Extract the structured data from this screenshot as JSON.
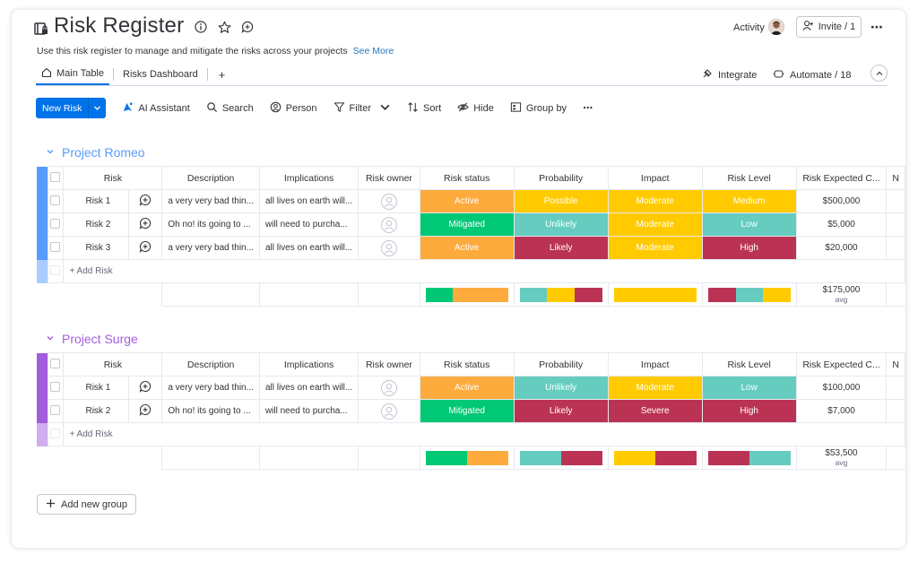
{
  "header": {
    "title": "Risk Register",
    "subtitle": "Use this risk register to manage and mitigate the risks across your projects",
    "see_more": "See More",
    "activity": "Activity",
    "invite": "Invite / 1",
    "more": "⋯"
  },
  "tabs": [
    {
      "label": "Main Table",
      "active": true
    },
    {
      "label": "Risks Dashboard",
      "active": false
    }
  ],
  "tab_add": "+",
  "integrate": "Integrate",
  "automate": "Automate / 18",
  "toolbar": {
    "new_risk": "New Risk",
    "ai_assistant": "AI Assistant",
    "search": "Search",
    "person": "Person",
    "filter": "Filter",
    "sort": "Sort",
    "hide": "Hide",
    "group_by": "Group by",
    "more": "⋯"
  },
  "columns": [
    "Risk",
    "Description",
    "Implications",
    "Risk owner",
    "Risk status",
    "Probability",
    "Impact",
    "Risk Level",
    "Risk Expected C...",
    "N"
  ],
  "colors": {
    "active": "#fdab3d",
    "mitigated": "#00c875",
    "possible": "#ffcb00",
    "unlikely": "#66ccc0",
    "likely": "#bb3354",
    "moderate": "#ffcb00",
    "severe": "#bb3354",
    "medium": "#ffcb00",
    "low": "#66ccc0",
    "high": "#bb3354",
    "romeo": "#579bfc",
    "surge": "#a25ddc"
  },
  "groups": [
    {
      "name": "Project Romeo",
      "color": "#579bfc",
      "rows": [
        {
          "risk": "Risk 1",
          "description": "a very very bad thin...",
          "implications": "all lives on earth will...",
          "status": "Active",
          "probability": "Possible",
          "impact": "Moderate",
          "level": "Medium",
          "cost": "$500,000"
        },
        {
          "risk": "Risk 2",
          "description": "Oh no! its going to ...",
          "implications": "will need to purcha...",
          "status": "Mitigated",
          "probability": "Unlikely",
          "impact": "Moderate",
          "level": "Low",
          "cost": "$5,000"
        },
        {
          "risk": "Risk 3",
          "description": "a very very bad thin...",
          "implications": "all lives on earth will...",
          "status": "Active",
          "probability": "Likely",
          "impact": "Moderate",
          "level": "High",
          "cost": "$20,000"
        }
      ],
      "add_label": "+ Add Risk",
      "summary_value": "$175,000",
      "summary_label": "avg"
    },
    {
      "name": "Project Surge",
      "color": "#a25ddc",
      "rows": [
        {
          "risk": "Risk 1",
          "description": "a very very bad thin...",
          "implications": "all lives on earth will...",
          "status": "Active",
          "probability": "Unlikely",
          "impact": "Moderate",
          "level": "Low",
          "cost": "$100,000"
        },
        {
          "risk": "Risk 2",
          "description": "Oh no! its going to ...",
          "implications": "will need to purcha...",
          "status": "Mitigated",
          "probability": "Likely",
          "impact": "Severe",
          "level": "High",
          "cost": "$7,000"
        }
      ],
      "add_label": "+ Add Risk",
      "summary_value": "$53,500",
      "summary_label": "avg"
    }
  ],
  "add_group": "Add new group"
}
